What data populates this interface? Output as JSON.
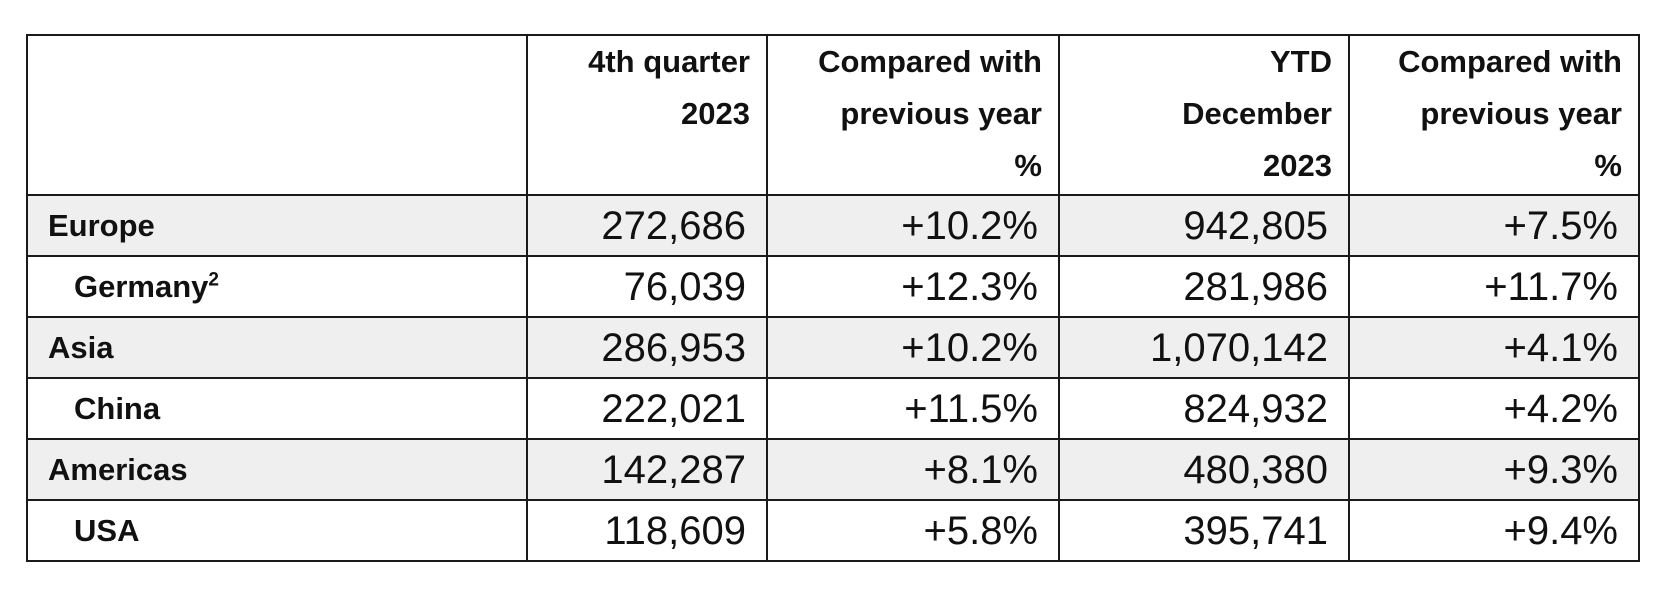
{
  "table": {
    "headers": {
      "region": "",
      "q4": "4th quarter\n2023",
      "q4_change": "Compared with\nprevious year\n%",
      "ytd": "YTD\nDecember\n2023",
      "ytd_change": "Compared with\nprevious year\n%"
    },
    "rows": [
      {
        "region": "Europe",
        "footnote": "",
        "q4": "272,686",
        "q4_change": "+10.2%",
        "ytd": "942,805",
        "ytd_change": "+7.5%"
      },
      {
        "region": "Germany",
        "footnote": "2",
        "q4": "76,039",
        "q4_change": "+12.3%",
        "ytd": "281,986",
        "ytd_change": "+11.7%"
      },
      {
        "region": "Asia",
        "footnote": "",
        "q4": "286,953",
        "q4_change": "+10.2%",
        "ytd": "1,070,142",
        "ytd_change": "+4.1%"
      },
      {
        "region": "China",
        "footnote": "",
        "q4": "222,021",
        "q4_change": "+11.5%",
        "ytd": "824,932",
        "ytd_change": "+4.2%"
      },
      {
        "region": "Americas",
        "footnote": "",
        "q4": "142,287",
        "q4_change": "+8.1%",
        "ytd": "480,380",
        "ytd_change": "+9.3%"
      },
      {
        "region": "USA",
        "footnote": "",
        "q4": "118,609",
        "q4_change": "+5.8%",
        "ytd": "395,741",
        "ytd_change": "+9.4%"
      }
    ]
  },
  "colors": {
    "shaded_row": "#efefef",
    "plain_row": "#ffffff",
    "border": "#1a1a1a",
    "text": "#111111"
  }
}
